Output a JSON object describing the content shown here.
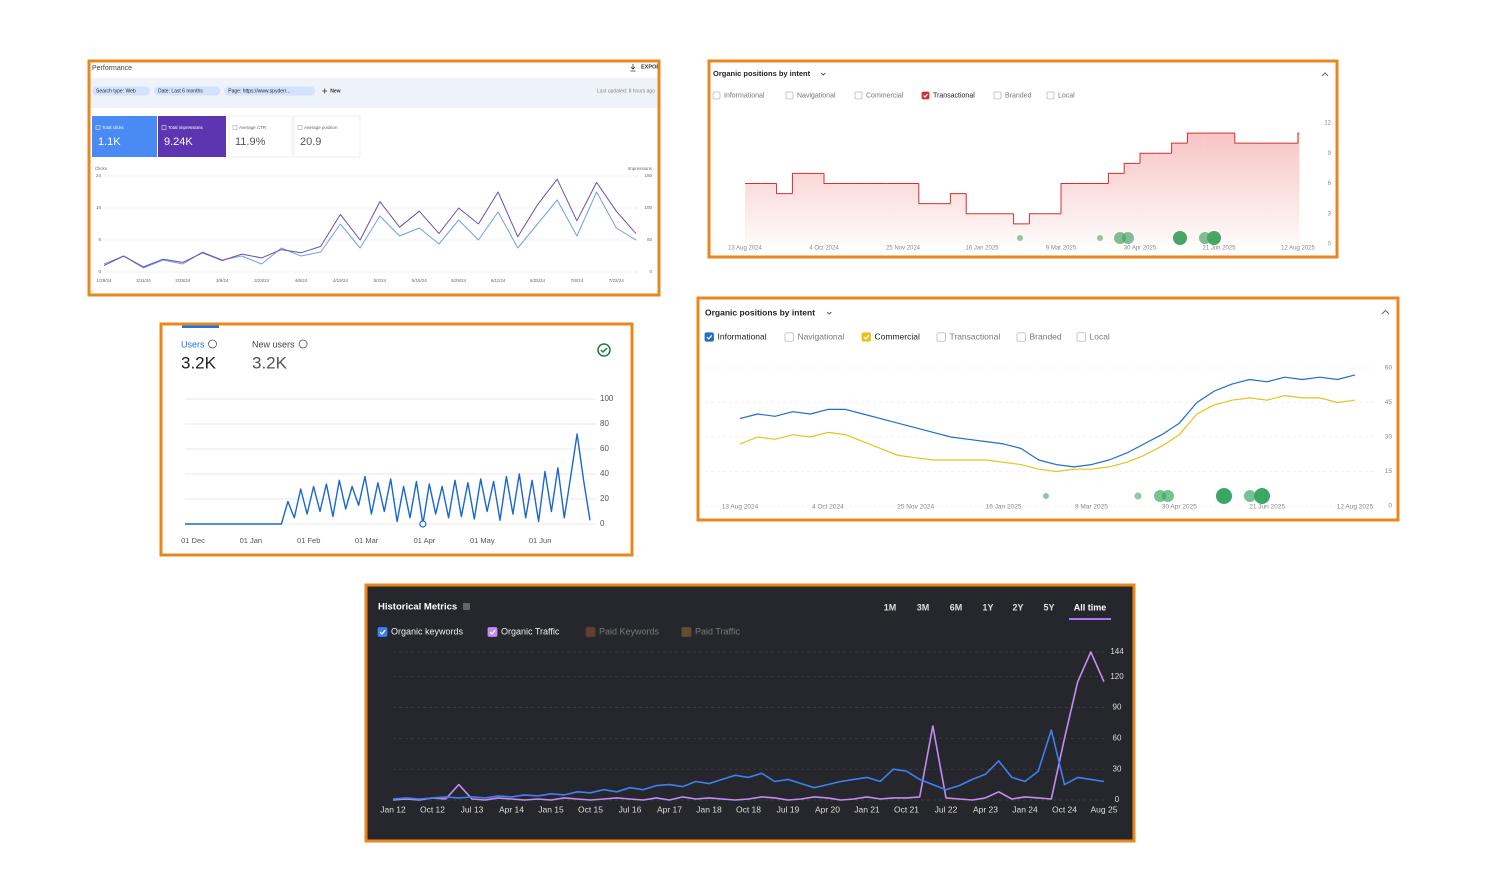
{
  "chart_data": [
    {
      "type": "line",
      "title": "Performance",
      "export": "EXPORT",
      "filters": [
        "Search type: Web",
        "Date: Last 6 months",
        "Page: https://www.spyderr..."
      ],
      "new_button": "New",
      "last_updated": "Last updated: 8 hours ago",
      "metrics": [
        {
          "label": "Total clicks",
          "value": "1.1K",
          "selected": true,
          "color": "#4a8af4"
        },
        {
          "label": "Total impressions",
          "value": "9.24K",
          "selected": true,
          "color": "#5e35b1"
        },
        {
          "label": "Average CTR",
          "value": "11.9%"
        },
        {
          "label": "Average position",
          "value": "20.9"
        }
      ],
      "categories": [
        "1/29/24",
        null,
        "2/11/24",
        null,
        "2/25/24",
        null,
        "3/9/24",
        null,
        "3/23/24",
        null,
        "4/6/24",
        null,
        "4/19/24",
        null,
        "5/2/24",
        null,
        "5/15/24",
        null,
        "5/29/24",
        null,
        "6/11/24",
        null,
        "6/25/24",
        null,
        "7/8/24",
        null,
        "7/22/24",
        null
      ],
      "series": [
        {
          "name": "Clicks",
          "color": "#6fa0e8",
          "values": [
            2,
            4,
            1,
            3,
            2,
            5,
            3,
            4,
            2,
            6,
            4,
            5,
            12,
            6,
            14,
            9,
            11,
            7,
            13,
            8,
            15,
            6,
            12,
            18,
            9,
            20,
            11,
            8
          ]
        },
        {
          "name": "Impressions",
          "color": "#6a4fb0",
          "axis": "y2",
          "values": [
            10,
            25,
            8,
            20,
            15,
            30,
            18,
            28,
            22,
            35,
            30,
            40,
            90,
            50,
            110,
            70,
            95,
            60,
            100,
            75,
            125,
            55,
            105,
            145,
            80,
            140,
            95,
            60
          ]
        }
      ],
      "ylim": [
        0,
        24
      ],
      "yticks": [
        0,
        8,
        16,
        24
      ],
      "y2lim": [
        0,
        150
      ],
      "y2ticks": [
        0,
        50,
        100,
        150
      ],
      "grid": true
    },
    {
      "type": "line",
      "title": "Organic positions by intent",
      "step": true,
      "area": true,
      "categories": [
        "13 Aug 2024",
        null,
        null,
        null,
        null,
        "4 Oct 2024",
        null,
        null,
        null,
        null,
        "25 Nov 2024",
        null,
        null,
        null,
        null,
        "16 Jan 2025",
        null,
        null,
        null,
        null,
        "9 Mar 2025",
        null,
        null,
        null,
        null,
        "30 Apr 2025",
        null,
        null,
        null,
        null,
        "21 Jun 2025",
        null,
        null,
        null,
        null,
        "12 Aug 2025"
      ],
      "series": [
        {
          "name": "Informational",
          "visible": false
        },
        {
          "name": "Navigational",
          "visible": false
        },
        {
          "name": "Commercial",
          "visible": false
        },
        {
          "name": "Transactional",
          "visible": true,
          "color": "#d32f2f",
          "values": [
            6,
            6,
            5,
            7,
            7,
            6,
            6,
            6,
            6,
            6,
            6,
            4,
            4,
            5,
            3,
            3,
            3,
            2,
            3,
            3,
            6,
            6,
            6,
            7,
            8,
            9,
            9,
            10,
            11,
            11,
            11,
            10,
            10,
            10,
            10,
            11
          ]
        },
        {
          "name": "Branded",
          "visible": false
        },
        {
          "name": "Local",
          "visible": false
        }
      ],
      "ylim": [
        0,
        12
      ],
      "yticks": [
        0,
        3,
        6,
        9,
        12
      ]
    },
    {
      "type": "line",
      "metrics": [
        {
          "label": "Users",
          "value": "3.2K",
          "selected": true
        },
        {
          "label": "New users",
          "value": "3.2K"
        }
      ],
      "categories": [
        "01 Dec",
        null,
        null,
        null,
        null,
        null,
        null,
        null,
        null,
        "01 Jan",
        null,
        null,
        null,
        null,
        null,
        null,
        null,
        null,
        "01 Feb",
        null,
        null,
        null,
        null,
        null,
        null,
        null,
        null,
        "01 Mar",
        null,
        null,
        null,
        null,
        null,
        null,
        null,
        null,
        "01 Apr",
        null,
        null,
        null,
        null,
        null,
        null,
        null,
        null,
        "01 May",
        null,
        null,
        null,
        null,
        null,
        null,
        null,
        null,
        "01 Jun",
        null,
        null,
        null,
        null,
        null,
        null,
        null,
        null,
        null
      ],
      "values": [
        0,
        0,
        0,
        0,
        0,
        0,
        0,
        0,
        0,
        0,
        0,
        0,
        0,
        0,
        0,
        0,
        18,
        5,
        28,
        8,
        30,
        10,
        32,
        6,
        35,
        12,
        30,
        15,
        38,
        8,
        33,
        10,
        36,
        2,
        30,
        5,
        34,
        0,
        32,
        8,
        30,
        5,
        35,
        6,
        33,
        4,
        36,
        10,
        34,
        3,
        38,
        8,
        40,
        5,
        35,
        2,
        42,
        10,
        45,
        5,
        38,
        72,
        35,
        3
      ],
      "color": "#1a66d2",
      "ylim": [
        0,
        100
      ],
      "yticks": [
        0,
        20,
        40,
        60,
        80,
        100
      ],
      "grid": true
    },
    {
      "type": "line",
      "title": "Organic positions by intent",
      "categories": [
        "13 Aug 2024",
        null,
        null,
        null,
        null,
        "4 Oct 2024",
        null,
        null,
        null,
        null,
        "25 Nov 2024",
        null,
        null,
        null,
        null,
        "16 Jan 2025",
        null,
        null,
        null,
        null,
        "9 Mar 2025",
        null,
        null,
        null,
        null,
        "30 Apr 2025",
        null,
        null,
        null,
        null,
        "21 Jun 2025",
        null,
        null,
        null,
        null,
        "12 Aug 2025"
      ],
      "series": [
        {
          "name": "Informational",
          "visible": true,
          "color": "#1f6fc5",
          "values": [
            38,
            40,
            39,
            41,
            40,
            42,
            42,
            40,
            38,
            36,
            34,
            32,
            30,
            29,
            28,
            27,
            25,
            20,
            18,
            17,
            18,
            20,
            23,
            27,
            31,
            36,
            45,
            50,
            53,
            55,
            54,
            56,
            55,
            56,
            55,
            57
          ]
        },
        {
          "name": "Navigational",
          "visible": false
        },
        {
          "name": "Commercial",
          "visible": true,
          "color": "#e8c21a",
          "values": [
            27,
            30,
            29,
            31,
            30,
            32,
            31,
            28,
            25,
            22,
            21,
            20,
            20,
            20,
            20,
            19,
            18,
            16,
            15,
            16,
            16,
            17,
            19,
            22,
            26,
            31,
            40,
            44,
            46,
            47,
            46,
            48,
            47,
            47,
            45,
            46
          ]
        },
        {
          "name": "Transactional",
          "visible": false
        },
        {
          "name": "Branded",
          "visible": false
        },
        {
          "name": "Local",
          "visible": false
        }
      ],
      "ylim": [
        0,
        60
      ],
      "yticks": [
        0,
        15,
        30,
        45,
        60
      ],
      "grid": true
    },
    {
      "type": "line",
      "title": "Historical Metrics",
      "ranges": [
        {
          "label": "1M"
        },
        {
          "label": "3M"
        },
        {
          "label": "6M"
        },
        {
          "label": "1Y"
        },
        {
          "label": "2Y"
        },
        {
          "label": "5Y"
        },
        {
          "label": "All time",
          "active": true
        }
      ],
      "categories": [
        "Jan 12",
        null,
        null,
        "Oct 12",
        null,
        null,
        "Jul 13",
        null,
        null,
        "Apr 14",
        null,
        null,
        "Jan 15",
        null,
        null,
        "Oct 15",
        null,
        null,
        "Jul 16",
        null,
        null,
        "Apr 17",
        null,
        null,
        "Jan 18",
        null,
        null,
        "Oct 18",
        null,
        null,
        "Jul 19",
        null,
        null,
        "Apr 20",
        null,
        null,
        "Jan 21",
        null,
        null,
        "Oct 21",
        null,
        null,
        "Jul 22",
        null,
        null,
        "Apr 23",
        null,
        null,
        "Jan 24",
        null,
        null,
        "Oct 24",
        null,
        null,
        "Aug 25"
      ],
      "series": [
        {
          "name": "Organic keywords",
          "visible": true,
          "color": "#3f7ff0",
          "values": [
            1,
            2,
            1,
            2,
            3,
            2,
            3,
            2,
            4,
            3,
            5,
            4,
            6,
            5,
            8,
            7,
            10,
            8,
            12,
            10,
            14,
            15,
            13,
            18,
            16,
            20,
            24,
            22,
            26,
            18,
            20,
            16,
            12,
            15,
            18,
            20,
            22,
            18,
            30,
            28,
            20,
            15,
            10,
            14,
            20,
            25,
            38,
            22,
            18,
            28,
            68,
            15,
            22,
            20,
            18
          ]
        },
        {
          "name": "Organic Traffic",
          "visible": true,
          "color": "#c48bf5",
          "values": [
            0,
            1,
            0,
            2,
            1,
            15,
            1,
            0,
            2,
            1,
            0,
            1,
            0,
            2,
            1,
            0,
            1,
            2,
            1,
            0,
            2,
            0,
            3,
            1,
            2,
            1,
            0,
            1,
            3,
            2,
            0,
            1,
            3,
            2,
            0,
            1,
            3,
            1,
            2,
            2,
            3,
            72,
            2,
            1,
            0,
            2,
            8,
            1,
            3,
            2,
            1,
            60,
            115,
            144,
            115
          ]
        },
        {
          "name": "Paid Keywords",
          "visible": false,
          "color": "#7d4a2c"
        },
        {
          "name": "Paid Traffic",
          "visible": false,
          "color": "#7d5e2c"
        }
      ],
      "ylim": [
        0,
        144
      ],
      "yticks": [
        0,
        30,
        60,
        90,
        120,
        144
      ],
      "grid": true
    }
  ]
}
